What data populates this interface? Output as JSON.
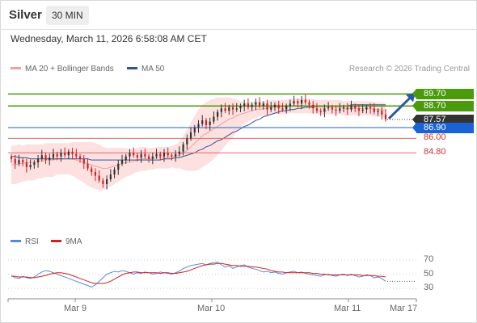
{
  "header": {
    "symbol": "Silver",
    "timeframe": "30 MIN",
    "datetime": "Wednesday, March 11, 2026 6:58:08 AM CET"
  },
  "legend": {
    "bb_label": "MA 20 + Bollinger Bands",
    "ma50_label": "MA 50",
    "rsi_label": "RSI",
    "rsi_ma_label": "9MA"
  },
  "credit": "Research © 2026 Trading Central",
  "colors": {
    "resistance": "#4a9b0c",
    "pivot": "#1a63d6",
    "support": "#e06b6b",
    "price": "#333333",
    "bb_fill": "#fde0e0",
    "ma20": "#f3a0a0",
    "ma50": "#33568f",
    "candle_up": "#333333",
    "candle_down": "#cc2222",
    "rsi": "#5b88d6",
    "rsi_ma": "#cc2222",
    "arrow": "#2b5aa0"
  },
  "chart_data": [
    {
      "type": "candlestick",
      "ylim": [
        78.5,
        91
      ],
      "x_ticks": [
        "Mar 9",
        "Mar 10",
        "Mar 11",
        "Mar 17"
      ],
      "levels": [
        {
          "name": "resistance-2",
          "value": 89.7,
          "label": "89.70",
          "kind": "resistance"
        },
        {
          "name": "resistance-1",
          "value": 88.7,
          "label": "88.70",
          "kind": "resistance"
        },
        {
          "name": "last-price",
          "value": 87.57,
          "label": "87.57",
          "kind": "price"
        },
        {
          "name": "pivot",
          "value": 86.9,
          "label": "86.90",
          "kind": "pivot"
        },
        {
          "name": "support-1",
          "value": 86.0,
          "label": "86.00",
          "kind": "support"
        },
        {
          "name": "support-2",
          "value": 84.8,
          "label": "84.80",
          "kind": "support"
        }
      ],
      "close": [
        84.3,
        83.9,
        84.2,
        84.0,
        83.6,
        83.8,
        84.0,
        84.3,
        84.6,
        84.2,
        84.4,
        84.7,
        84.5,
        84.8,
        84.6,
        84.9,
        84.7,
        84.5,
        84.3,
        83.9,
        83.5,
        83.2,
        82.9,
        82.5,
        82.2,
        82.6,
        83.0,
        83.4,
        83.9,
        84.2,
        84.5,
        84.8,
        84.6,
        84.4,
        84.7,
        84.5,
        84.3,
        84.5,
        84.7,
        84.5,
        84.8,
        84.6,
        84.5,
        84.7,
        84.9,
        85.5,
        86.0,
        86.5,
        86.9,
        87.2,
        87.5,
        87.1,
        87.4,
        87.8,
        88.2,
        88.5,
        88.3,
        88.6,
        88.4,
        88.5,
        88.7,
        88.9,
        88.6,
        88.8,
        89.0,
        88.7,
        88.9,
        88.4,
        88.6,
        88.8,
        88.5,
        88.4,
        88.7,
        88.9,
        89.1,
        88.9,
        89.2,
        89.0,
        88.8,
        88.5,
        88.3,
        88.2,
        88.5,
        88.6,
        88.4,
        88.3,
        88.5,
        88.6,
        88.4,
        88.7,
        88.5,
        88.3,
        88.4,
        88.6,
        88.5,
        88.2,
        88.3,
        88.0,
        87.6
      ],
      "ma20": [
        83.8,
        83.8,
        83.9,
        83.9,
        84.0,
        84.0,
        84.0,
        84.1,
        84.1,
        84.2,
        84.2,
        84.2,
        84.3,
        84.3,
        84.3,
        84.3,
        84.3,
        84.2,
        84.1,
        84.0,
        83.9,
        83.8,
        83.7,
        83.6,
        83.5,
        83.5,
        83.6,
        83.7,
        83.8,
        83.9,
        84.0,
        84.0,
        84.1,
        84.2,
        84.3,
        84.3,
        84.3,
        84.3,
        84.4,
        84.4,
        84.4,
        84.4,
        84.5,
        84.5,
        84.6,
        84.8,
        85.0,
        85.3,
        85.6,
        85.9,
        86.2,
        86.4,
        86.6,
        86.8,
        87.0,
        87.2,
        87.4,
        87.6,
        87.7,
        87.9,
        88.0,
        88.1,
        88.2,
        88.3,
        88.4,
        88.4,
        88.5,
        88.5,
        88.6,
        88.6,
        88.6,
        88.6,
        88.6,
        88.7,
        88.7,
        88.7,
        88.7,
        88.7,
        88.7,
        88.7,
        88.6,
        88.6,
        88.6,
        88.6,
        88.6,
        88.6,
        88.6,
        88.5,
        88.5,
        88.5,
        88.5,
        88.5,
        88.5,
        88.5,
        88.5,
        88.4,
        88.4,
        88.4,
        88.3
      ],
      "bb_width": [
        1.6,
        1.6,
        1.6,
        1.5,
        1.5,
        1.5,
        1.5,
        1.4,
        1.4,
        1.4,
        1.4,
        1.4,
        1.3,
        1.3,
        1.3,
        1.3,
        1.4,
        1.5,
        1.6,
        1.7,
        1.8,
        1.9,
        1.9,
        1.9,
        1.8,
        1.7,
        1.6,
        1.5,
        1.4,
        1.3,
        1.2,
        1.1,
        1.0,
        1.0,
        1.0,
        1.0,
        0.9,
        0.9,
        0.9,
        0.9,
        0.9,
        0.9,
        0.9,
        1.0,
        1.1,
        1.4,
        1.7,
        2.0,
        2.3,
        2.5,
        2.6,
        2.6,
        2.6,
        2.5,
        2.4,
        2.2,
        2.0,
        1.8,
        1.6,
        1.3,
        1.1,
        0.9,
        0.8,
        0.7,
        0.7,
        0.6,
        0.6,
        0.6,
        0.6,
        0.6,
        0.6,
        0.6,
        0.6,
        0.6,
        0.6,
        0.6,
        0.6,
        0.6,
        0.6,
        0.6,
        0.6,
        0.6,
        0.6,
        0.6,
        0.6,
        0.6,
        0.6,
        0.6,
        0.6,
        0.6,
        0.6,
        0.6,
        0.6,
        0.6,
        0.6,
        0.6,
        0.6,
        0.6,
        0.6
      ],
      "ma50": [
        84.5,
        84.5,
        84.4,
        84.4,
        84.4,
        84.3,
        84.3,
        84.3,
        84.3,
        84.3,
        84.3,
        84.3,
        84.3,
        84.3,
        84.3,
        84.3,
        84.3,
        84.3,
        84.3,
        84.3,
        84.3,
        84.2,
        84.2,
        84.2,
        84.2,
        84.2,
        84.2,
        84.2,
        84.2,
        84.2,
        84.2,
        84.2,
        84.2,
        84.2,
        84.2,
        84.2,
        84.2,
        84.2,
        84.2,
        84.2,
        84.3,
        84.3,
        84.3,
        84.4,
        84.4,
        84.5,
        84.6,
        84.7,
        84.8,
        85.0,
        85.1,
        85.3,
        85.4,
        85.6,
        85.8,
        85.9,
        86.1,
        86.3,
        86.5,
        86.6,
        86.8,
        87.0,
        87.1,
        87.3,
        87.5,
        87.6,
        87.8,
        87.9,
        88.0,
        88.1,
        88.2,
        88.3,
        88.3,
        88.4,
        88.4,
        88.5,
        88.5,
        88.6,
        88.6,
        88.6,
        88.7,
        88.7,
        88.7,
        88.7,
        88.7,
        88.7,
        88.7,
        88.7,
        88.7,
        88.8,
        88.8,
        88.8,
        88.8,
        88.8,
        88.8,
        88.8,
        88.8,
        88.8,
        88.8
      ]
    },
    {
      "type": "line",
      "name": "rsi",
      "ylim": [
        20,
        80
      ],
      "y_ticks": [
        70,
        50,
        30
      ],
      "rsi": [
        48,
        45,
        44,
        47,
        45,
        44,
        46,
        50,
        53,
        55,
        54,
        52,
        50,
        48,
        46,
        44,
        42,
        40,
        38,
        36,
        34,
        32,
        35,
        40,
        45,
        50,
        52,
        54,
        53,
        55,
        54,
        52,
        50,
        52,
        51,
        53,
        52,
        50,
        51,
        53,
        52,
        51,
        50,
        52,
        54,
        58,
        60,
        62,
        63,
        64,
        65,
        63,
        65,
        66,
        67,
        63,
        60,
        62,
        58,
        60,
        62,
        63,
        60,
        58,
        57,
        55,
        53,
        54,
        52,
        53,
        51,
        50,
        52,
        53,
        54,
        52,
        53,
        51,
        50,
        49,
        48,
        47,
        49,
        50,
        48,
        47,
        49,
        50,
        48,
        50,
        48,
        46,
        47,
        49,
        48,
        45,
        46,
        44,
        40
      ],
      "rsi_ma": [
        47,
        47,
        46,
        46,
        46,
        45,
        45,
        46,
        47,
        48,
        50,
        51,
        52,
        52,
        51,
        50,
        48,
        46,
        44,
        42,
        40,
        38,
        37,
        37,
        37,
        38,
        40,
        43,
        46,
        49,
        51,
        52,
        53,
        53,
        52,
        52,
        52,
        52,
        52,
        51,
        52,
        52,
        51,
        51,
        52,
        53,
        54,
        56,
        58,
        60,
        62,
        63,
        64,
        64,
        65,
        65,
        64,
        63,
        62,
        62,
        61,
        61,
        61,
        60,
        60,
        59,
        58,
        57,
        55,
        54,
        53,
        53,
        52,
        52,
        52,
        52,
        52,
        52,
        52,
        51,
        51,
        50,
        50,
        49,
        49,
        49,
        49,
        49,
        49,
        49,
        49,
        49,
        48,
        48,
        48,
        48,
        47,
        47,
        46
      ]
    }
  ]
}
